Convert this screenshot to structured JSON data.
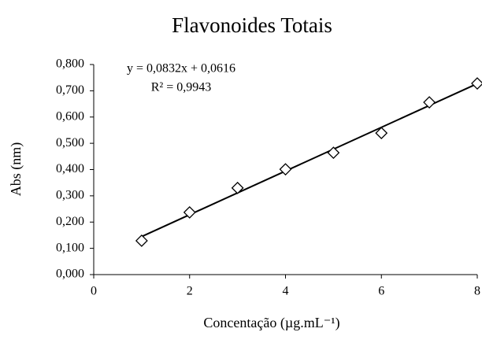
{
  "chart_data": {
    "type": "scatter",
    "title": "Flavonoides Totais",
    "x_label": "Concentação (µg.mL⁻¹)",
    "y_label": "Abs (nm)",
    "x": [
      1,
      2,
      3,
      4,
      5,
      6,
      7,
      8
    ],
    "values": [
      0.129,
      0.237,
      0.33,
      0.401,
      0.464,
      0.539,
      0.656,
      0.728
    ],
    "color": "#000000",
    "xlim": [
      0,
      8
    ],
    "xticks": [
      0,
      2,
      4,
      6,
      8
    ],
    "ylim": [
      0,
      0.8
    ],
    "yticks": [
      {
        "value": 0,
        "label": "0,000"
      },
      {
        "value": 0.1,
        "label": "0,100"
      },
      {
        "value": 0.2,
        "label": "0,200"
      },
      {
        "value": 0.3,
        "label": "0,300"
      },
      {
        "value": 0.4,
        "label": "0,400"
      },
      {
        "value": 0.5,
        "label": "0,500"
      },
      {
        "value": 0.6,
        "label": "0,600"
      },
      {
        "value": 0.7,
        "label": "0,700"
      },
      {
        "value": 0.8,
        "label": "0,800"
      }
    ],
    "trendline": {
      "slope": 0.0832,
      "intercept": 0.0616
    },
    "annotations": [
      "y = 0,0832x + 0,0616",
      "R² = 0,9943"
    ],
    "grid": false
  }
}
